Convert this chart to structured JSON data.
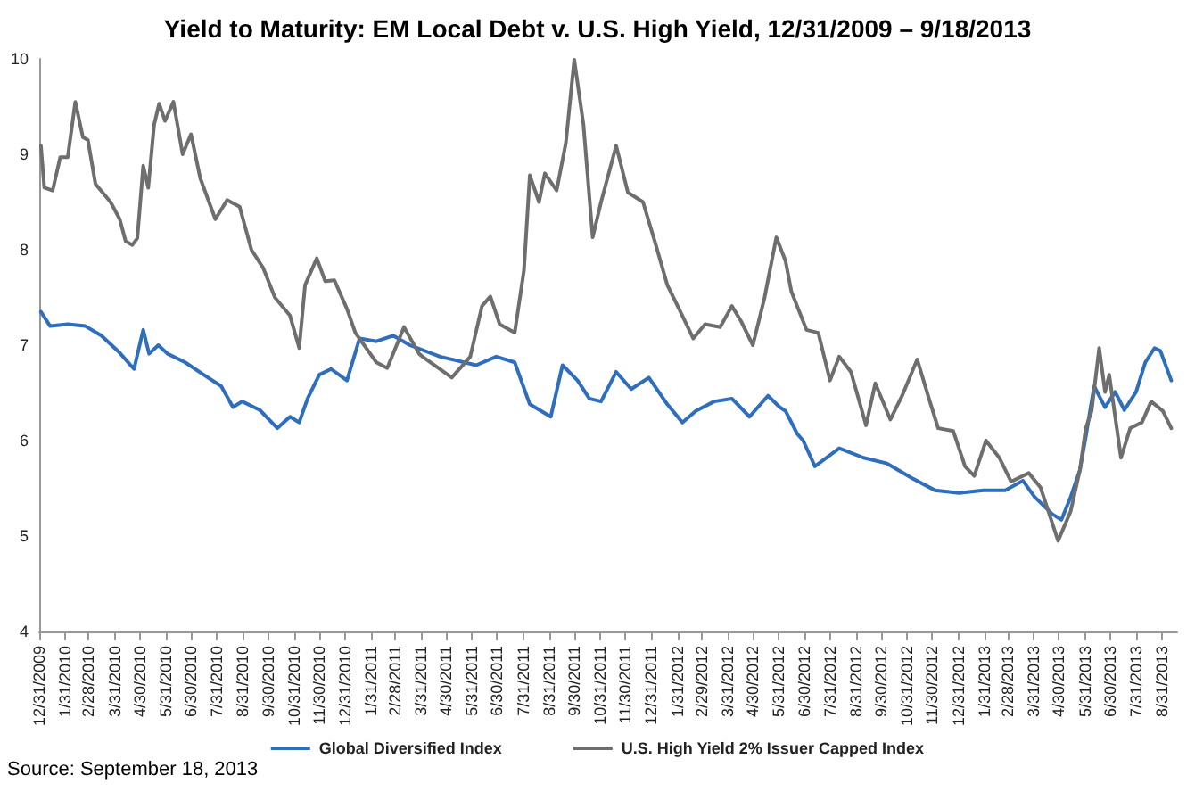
{
  "chart_data": {
    "type": "line",
    "title": "Yield to Maturity: EM Local Debt v. U.S. High Yield, 12/31/2009 – 9/18/2013",
    "annotations": [
      "Source: September 18, 2013"
    ],
    "xlim": [
      "2009-12-31",
      "2013-09-18"
    ],
    "xticks": [
      {
        "value": "2009-12-31",
        "label": "12/31/2009"
      },
      {
        "value": "2010-01-31",
        "label": "1/31/2010"
      },
      {
        "value": "2010-02-28",
        "label": "2/28/2010"
      },
      {
        "value": "2010-03-31",
        "label": "3/31/2010"
      },
      {
        "value": "2010-04-30",
        "label": "4/30/2010"
      },
      {
        "value": "2010-05-31",
        "label": "5/31/2010"
      },
      {
        "value": "2010-06-30",
        "label": "6/30/2010"
      },
      {
        "value": "2010-07-31",
        "label": "7/31/2010"
      },
      {
        "value": "2010-08-31",
        "label": "8/31/2010"
      },
      {
        "value": "2010-09-30",
        "label": "9/30/2010"
      },
      {
        "value": "2010-10-31",
        "label": "10/31/2010"
      },
      {
        "value": "2010-11-30",
        "label": "11/30/2010"
      },
      {
        "value": "2010-12-31",
        "label": "12/31/2010"
      },
      {
        "value": "2011-01-31",
        "label": "1/31/2011"
      },
      {
        "value": "2011-02-28",
        "label": "2/28/2011"
      },
      {
        "value": "2011-03-31",
        "label": "3/31/2011"
      },
      {
        "value": "2011-04-30",
        "label": "4/30/2011"
      },
      {
        "value": "2011-05-31",
        "label": "5/31/2011"
      },
      {
        "value": "2011-06-30",
        "label": "6/30/2011"
      },
      {
        "value": "2011-07-31",
        "label": "7/31/2011"
      },
      {
        "value": "2011-08-31",
        "label": "8/31/2011"
      },
      {
        "value": "2011-09-30",
        "label": "9/30/2011"
      },
      {
        "value": "2011-10-31",
        "label": "10/31/2011"
      },
      {
        "value": "2011-11-30",
        "label": "11/30/2011"
      },
      {
        "value": "2011-12-31",
        "label": "12/31/2011"
      },
      {
        "value": "2012-01-31",
        "label": "1/31/2012"
      },
      {
        "value": "2012-02-29",
        "label": "2/29/2012"
      },
      {
        "value": "2012-03-31",
        "label": "3/31/2012"
      },
      {
        "value": "2012-04-30",
        "label": "4/30/2012"
      },
      {
        "value": "2012-05-31",
        "label": "5/31/2012"
      },
      {
        "value": "2012-06-30",
        "label": "6/30/2012"
      },
      {
        "value": "2012-07-31",
        "label": "7/31/2012"
      },
      {
        "value": "2012-08-31",
        "label": "8/31/2012"
      },
      {
        "value": "2012-09-30",
        "label": "9/30/2012"
      },
      {
        "value": "2012-10-31",
        "label": "10/31/2012"
      },
      {
        "value": "2012-11-30",
        "label": "11/30/2012"
      },
      {
        "value": "2012-12-31",
        "label": "12/31/2012"
      },
      {
        "value": "2013-01-31",
        "label": "1/31/2013"
      },
      {
        "value": "2013-02-28",
        "label": "2/28/2013"
      },
      {
        "value": "2013-03-31",
        "label": "3/31/2013"
      },
      {
        "value": "2013-04-30",
        "label": "4/30/2013"
      },
      {
        "value": "2013-05-31",
        "label": "5/31/2013"
      },
      {
        "value": "2013-06-30",
        "label": "6/30/2013"
      },
      {
        "value": "2013-07-31",
        "label": "7/31/2013"
      },
      {
        "value": "2013-08-31",
        "label": "8/31/2013"
      }
    ],
    "ylim": [
      4,
      10
    ],
    "yticks": [
      4,
      5,
      6,
      7,
      8,
      9,
      10
    ],
    "grid": false,
    "legend": "bottom",
    "marker": "none",
    "line_style": "solid",
    "series": [
      {
        "name": "Global Diversified Index",
        "color": "#2e6ebc",
        "x": [
          "2010-01-02",
          "2010-01-13",
          "2010-02-03",
          "2010-02-24",
          "2010-03-15",
          "2010-04-06",
          "2010-04-23",
          "2010-05-04",
          "2010-05-11",
          "2010-05-22",
          "2010-06-02",
          "2010-06-23",
          "2010-07-15",
          "2010-08-05",
          "2010-08-19",
          "2010-08-30",
          "2010-09-20",
          "2010-10-11",
          "2010-10-26",
          "2010-11-06",
          "2010-11-16",
          "2010-11-30",
          "2010-12-14",
          "2011-01-02",
          "2011-01-17",
          "2011-02-06",
          "2011-02-26",
          "2011-03-18",
          "2011-04-23",
          "2011-06-05",
          "2011-06-29",
          "2011-07-21",
          "2011-08-08",
          "2011-09-02",
          "2011-09-16",
          "2011-10-04",
          "2011-10-18",
          "2011-11-01",
          "2011-11-19",
          "2011-12-07",
          "2011-12-28",
          "2012-01-19",
          "2012-02-06",
          "2012-02-22",
          "2012-03-15",
          "2012-04-05",
          "2012-04-26",
          "2012-05-18",
          "2012-06-01",
          "2012-06-08",
          "2012-06-22",
          "2012-06-29",
          "2012-07-13",
          "2012-08-11",
          "2012-09-09",
          "2012-10-07",
          "2012-11-05",
          "2012-12-03",
          "2013-01-01",
          "2013-01-30",
          "2013-02-25",
          "2013-03-18",
          "2013-04-01",
          "2013-04-22",
          "2013-05-03",
          "2013-05-14",
          "2013-05-25",
          "2013-06-01",
          "2013-06-11",
          "2013-06-24",
          "2013-07-06",
          "2013-07-17",
          "2013-07-31",
          "2013-08-11",
          "2013-08-22",
          "2013-08-29",
          "2013-09-11"
        ],
        "values": [
          7.35,
          7.2,
          7.22,
          7.2,
          7.1,
          6.92,
          6.75,
          7.16,
          6.91,
          7.0,
          6.91,
          6.82,
          6.69,
          6.57,
          6.35,
          6.41,
          6.32,
          6.13,
          6.25,
          6.19,
          6.44,
          6.69,
          6.75,
          6.63,
          7.07,
          7.04,
          7.1,
          7.0,
          6.88,
          6.79,
          6.88,
          6.82,
          6.38,
          6.25,
          6.79,
          6.63,
          6.44,
          6.41,
          6.72,
          6.54,
          6.66,
          6.38,
          6.19,
          6.31,
          6.41,
          6.44,
          6.25,
          6.47,
          6.35,
          6.31,
          6.07,
          6.0,
          5.73,
          5.92,
          5.82,
          5.76,
          5.61,
          5.48,
          5.45,
          5.48,
          5.48,
          5.58,
          5.41,
          5.23,
          5.17,
          5.41,
          5.69,
          6.04,
          6.57,
          6.35,
          6.51,
          6.32,
          6.51,
          6.82,
          6.97,
          6.94,
          6.63
        ]
      },
      {
        "name": "U.S. High Yield 2% Issuer Capped Index",
        "color": "#6e6e6e",
        "x": [
          "2010-01-02",
          "2010-01-06",
          "2010-01-16",
          "2010-01-25",
          "2010-02-03",
          "2010-02-12",
          "2010-02-21",
          "2010-02-27",
          "2010-03-08",
          "2010-03-26",
          "2010-04-06",
          "2010-04-13",
          "2010-04-21",
          "2010-04-27",
          "2010-05-04",
          "2010-05-10",
          "2010-05-17",
          "2010-05-23",
          "2010-05-30",
          "2010-06-09",
          "2010-06-20",
          "2010-06-30",
          "2010-07-11",
          "2010-07-29",
          "2010-08-12",
          "2010-08-27",
          "2010-09-10",
          "2010-09-24",
          "2010-10-08",
          "2010-10-26",
          "2010-11-06",
          "2010-11-13",
          "2010-11-27",
          "2010-12-07",
          "2010-12-18",
          "2011-01-02",
          "2011-01-12",
          "2011-02-06",
          "2011-02-19",
          "2011-03-11",
          "2011-03-29",
          "2011-04-02",
          "2011-05-07",
          "2011-05-29",
          "2011-06-12",
          "2011-06-22",
          "2011-07-03",
          "2011-07-21",
          "2011-08-01",
          "2011-08-08",
          "2011-08-19",
          "2011-08-26",
          "2011-09-09",
          "2011-09-20",
          "2011-09-30",
          "2011-10-11",
          "2011-10-22",
          "2011-11-01",
          "2011-11-19",
          "2011-12-03",
          "2011-12-21",
          "2012-01-05",
          "2012-01-19",
          "2012-02-02",
          "2012-02-19",
          "2012-03-04",
          "2012-03-22",
          "2012-04-05",
          "2012-04-16",
          "2012-04-30",
          "2012-05-14",
          "2012-05-28",
          "2012-06-08",
          "2012-06-15",
          "2012-07-03",
          "2012-07-17",
          "2012-07-31",
          "2012-08-11",
          "2012-08-25",
          "2012-09-12",
          "2012-09-23",
          "2012-10-11",
          "2012-10-25",
          "2012-11-12",
          "2012-11-26",
          "2012-12-07",
          "2012-12-25",
          "2013-01-08",
          "2013-01-19",
          "2013-02-02",
          "2013-02-18",
          "2013-03-04",
          "2013-03-25",
          "2013-04-08",
          "2013-04-29",
          "2013-05-14",
          "2013-05-25",
          "2013-06-01",
          "2013-06-08",
          "2013-06-17",
          "2013-06-24",
          "2013-06-29",
          "2013-07-13",
          "2013-07-24",
          "2013-08-07",
          "2013-08-18",
          "2013-09-01",
          "2013-09-11"
        ],
        "values": [
          9.09,
          8.65,
          8.62,
          8.97,
          8.97,
          9.55,
          9.18,
          9.15,
          8.69,
          8.5,
          8.32,
          8.09,
          8.05,
          8.12,
          8.88,
          8.65,
          9.31,
          9.53,
          9.35,
          9.55,
          9.0,
          9.21,
          8.75,
          8.32,
          8.52,
          8.45,
          8.0,
          7.81,
          7.5,
          7.31,
          6.97,
          7.63,
          7.91,
          7.67,
          7.68,
          7.38,
          7.13,
          6.82,
          6.76,
          7.19,
          6.91,
          6.88,
          6.66,
          6.88,
          7.41,
          7.51,
          7.22,
          7.13,
          7.78,
          8.78,
          8.5,
          8.8,
          8.62,
          9.12,
          9.99,
          9.31,
          8.13,
          8.5,
          9.09,
          8.6,
          8.5,
          8.06,
          7.63,
          7.38,
          7.07,
          7.22,
          7.19,
          7.41,
          7.25,
          7.0,
          7.5,
          8.13,
          7.88,
          7.56,
          7.16,
          7.13,
          6.63,
          6.88,
          6.72,
          6.16,
          6.6,
          6.22,
          6.47,
          6.85,
          6.44,
          6.13,
          6.1,
          5.73,
          5.63,
          6.0,
          5.82,
          5.57,
          5.66,
          5.51,
          4.95,
          5.26,
          5.69,
          6.13,
          6.31,
          6.97,
          6.51,
          6.69,
          5.82,
          6.13,
          6.19,
          6.41,
          6.31,
          6.13
        ]
      }
    ]
  }
}
